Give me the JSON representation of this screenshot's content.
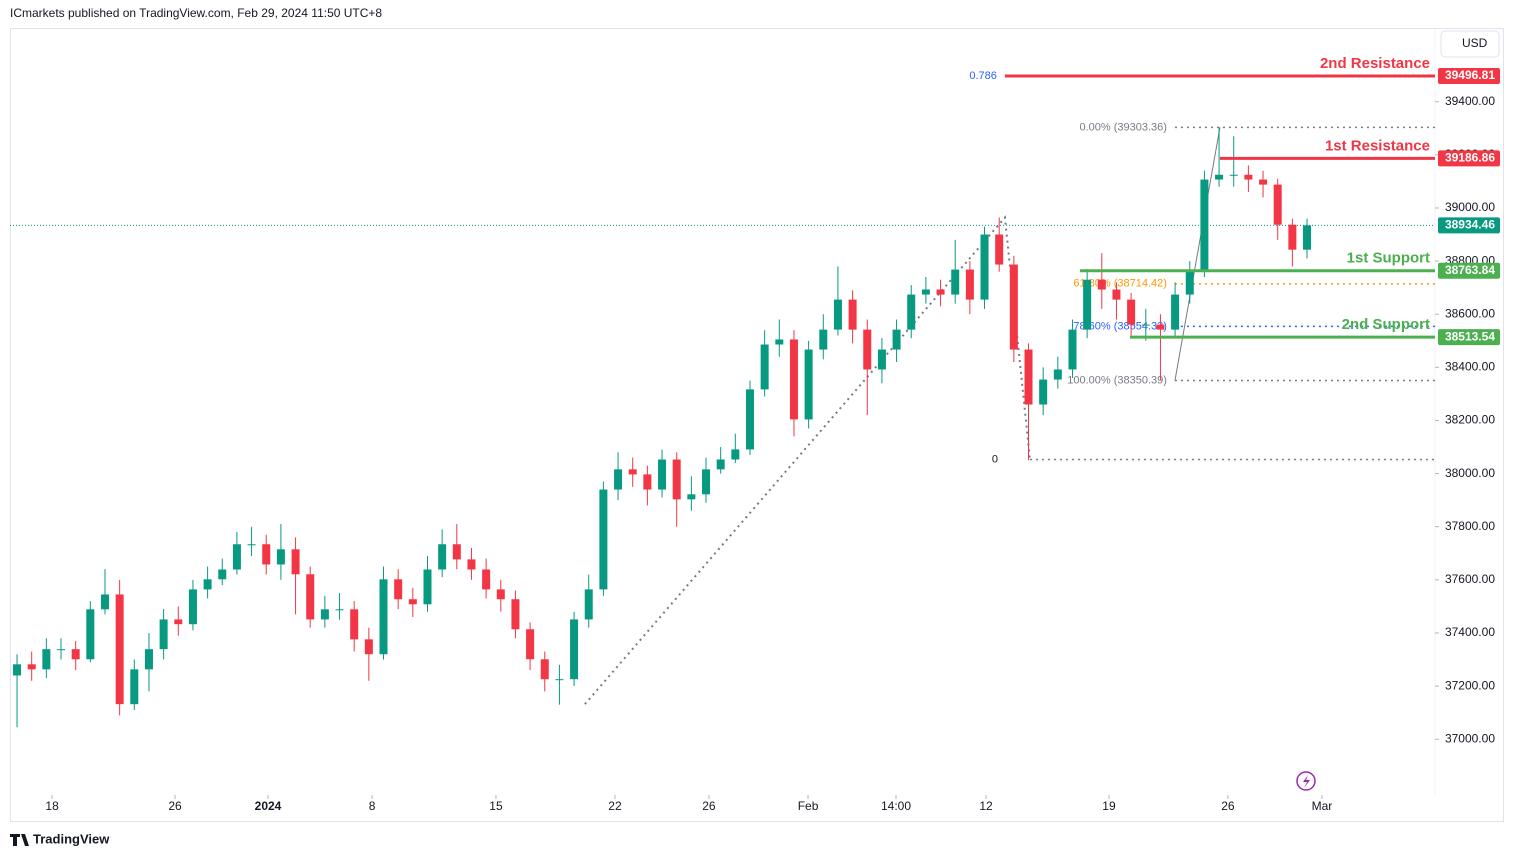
{
  "header": {
    "text": "ICmarkets published on TradingView.com, Feb 29, 2024 11:50 UTC+8"
  },
  "footer": {
    "brand": "TradingView"
  },
  "currency": "USD",
  "chart_data": {
    "type": "candlestick",
    "open": [
      37240,
      37282,
      37263,
      37339,
      37339,
      37301,
      37489,
      37545,
      37132,
      37263,
      37339,
      37451,
      37433,
      37564,
      37602,
      37639,
      37734,
      37734,
      37658,
      37715,
      37621,
      37451,
      37489,
      37489,
      37376,
      37320,
      37602,
      37527,
      37508,
      37639,
      37734,
      37677,
      37639,
      37564,
      37527,
      37414,
      37301,
      37226,
      37226,
      37451,
      37564,
      37940,
      38016,
      37997,
      37940,
      38053,
      37903,
      37922,
      38016,
      38053,
      38091,
      38317,
      38486,
      38505,
      38204,
      38467,
      38542,
      38655,
      38542,
      38392,
      38467,
      38542,
      38674,
      38693,
      38674,
      38768,
      38655,
      38900,
      38787,
      38467,
      38260,
      38354,
      38392,
      38542,
      38730,
      38693,
      38655,
      38561,
      38561,
      38542,
      38674,
      38768,
      39107,
      39125,
      39125,
      39107,
      39088,
      38937,
      38843
    ],
    "high": [
      37320,
      37330,
      37380,
      37380,
      37370,
      37520,
      37640,
      37600,
      37300,
      37400,
      37490,
      37500,
      37600,
      37650,
      37680,
      37780,
      37800,
      37770,
      37810,
      37760,
      37650,
      37540,
      37550,
      37520,
      37420,
      37650,
      37640,
      37570,
      37690,
      37790,
      37810,
      37720,
      37680,
      37600,
      37560,
      37440,
      37330,
      37280,
      37480,
      37620,
      37970,
      38080,
      38060,
      38030,
      38090,
      38080,
      37990,
      38060,
      38100,
      38150,
      38350,
      38540,
      38580,
      38540,
      38500,
      38600,
      38780,
      38690,
      38580,
      38510,
      38580,
      38710,
      38740,
      38730,
      38880,
      38800,
      38930,
      38964,
      38820,
      38490,
      38400,
      38440,
      38580,
      38770,
      38830,
      38720,
      38680,
      38620,
      38600,
      38720,
      38800,
      39140,
      39303.36,
      39270,
      39160,
      39140,
      39110,
      38960,
      38960
    ],
    "low": [
      37045,
      37220,
      37230,
      37300,
      37260,
      37290,
      37470,
      37090,
      37110,
      37180,
      37300,
      37390,
      37410,
      37530,
      37580,
      37620,
      37690,
      37620,
      37600,
      37470,
      37420,
      37420,
      37450,
      37330,
      37220,
      37300,
      37490,
      37460,
      37480,
      37610,
      37640,
      37600,
      37530,
      37480,
      37380,
      37260,
      37180,
      37130,
      37200,
      37420,
      37540,
      37900,
      37950,
      37880,
      37910,
      37800,
      37860,
      37890,
      38000,
      38040,
      38070,
      38290,
      38440,
      38140,
      38170,
      38430,
      38520,
      38490,
      38220,
      38340,
      38420,
      38510,
      38640,
      38630,
      38640,
      38600,
      38620,
      38760,
      38420,
      38050,
      38220,
      38320,
      38360,
      38510,
      38620,
      38580,
      38520,
      38500,
      38350.39,
      38510,
      38640,
      38740,
      39080,
      39080,
      39060,
      39040,
      38880,
      38780,
      38810
    ],
    "close": [
      37282,
      37263,
      37339,
      37339,
      37301,
      37489,
      37545,
      37132,
      37263,
      37339,
      37451,
      37433,
      37564,
      37602,
      37639,
      37734,
      37734,
      37658,
      37715,
      37621,
      37451,
      37489,
      37489,
      37376,
      37320,
      37602,
      37527,
      37508,
      37639,
      37734,
      37677,
      37639,
      37564,
      37527,
      37414,
      37301,
      37226,
      37226,
      37451,
      37564,
      37940,
      38016,
      37997,
      37940,
      38053,
      37903,
      37922,
      38016,
      38053,
      38091,
      38317,
      38486,
      38505,
      38204,
      38467,
      38542,
      38655,
      38542,
      38392,
      38467,
      38542,
      38674,
      38693,
      38674,
      38768,
      38655,
      38900,
      38787,
      38467,
      38260,
      38354,
      38392,
      38542,
      38730,
      38693,
      38655,
      38561,
      38561,
      38542,
      38674,
      38768,
      39107,
      39125,
      39125,
      39107,
      39088,
      38937,
      38843,
      38934.46
    ],
    "colors": {
      "up": "#089981",
      "down": "#f23645"
    },
    "xlim": [
      -0.48,
      96.73
    ],
    "xticks": [
      {
        "value": 2.39,
        "label": "18"
      },
      {
        "value": 10.78,
        "label": "26"
      },
      {
        "value": 17.12,
        "label": "2024"
      },
      {
        "value": 24.22,
        "label": "8"
      },
      {
        "value": 32.67,
        "label": "15"
      },
      {
        "value": 40.79,
        "label": "22"
      },
      {
        "value": 47.2,
        "label": "26"
      },
      {
        "value": 53.96,
        "label": "Feb"
      },
      {
        "value": 59.96,
        "label": "14:00"
      },
      {
        "value": 66.1,
        "label": "12"
      },
      {
        "value": 74.49,
        "label": "19"
      },
      {
        "value": 82.6,
        "label": "26"
      },
      {
        "value": 89.02,
        "label": "Mar"
      }
    ],
    "ylim": [
      36790,
      39670
    ],
    "yticks": [
      {
        "value": 37000,
        "label": "37000.00"
      },
      {
        "value": 37200,
        "label": "37200.00"
      },
      {
        "value": 37400,
        "label": "37400.00"
      },
      {
        "value": 37600,
        "label": "37600.00"
      },
      {
        "value": 37800,
        "label": "37800.00"
      },
      {
        "value": 38000,
        "label": "38000.00"
      },
      {
        "value": 38200,
        "label": "38200.00"
      },
      {
        "value": 38400,
        "label": "38400.00"
      },
      {
        "value": 38600,
        "label": "38600.00"
      },
      {
        "value": 38800,
        "label": "38800.00"
      },
      {
        "value": 39000,
        "label": "39000.00"
      },
      {
        "value": 39200,
        "label": "39200.00"
      },
      {
        "value": 39400,
        "label": "39400.00"
      }
    ],
    "last_price_color": "#089981",
    "levels": [
      {
        "name": "2nd Resistance",
        "value": 39496.81,
        "color": "#f23645",
        "from": 67.39,
        "ratio": "0.786"
      },
      {
        "name": "1st Resistance",
        "value": 39186.86,
        "color": "#f23645",
        "from": 82.06
      },
      {
        "name": "1st Support",
        "value": 38763.84,
        "color": "#4caf50",
        "from": 72.51
      },
      {
        "name": "2nd Support",
        "value": 38513.54,
        "color": "#4caf50",
        "from": 75.92
      }
    ],
    "fib": {
      "from": 78.99,
      "levels": [
        {
          "label": "0.00% (39303.36)",
          "value": 39303.36,
          "color": "#787b86"
        },
        {
          "label": "61.80% (38714.42)",
          "value": 38714.42,
          "color": "#ff9800"
        },
        {
          "label": "78.60% (38554.33)",
          "value": 38554.33,
          "color": "#2962ff"
        },
        {
          "label": "100.00% (38350.39)",
          "value": 38350.39,
          "color": "#787b86"
        }
      ]
    },
    "zero_level": {
      "label": "0",
      "value": 38053,
      "from": 69.1
    },
    "trend_lines": [
      {
        "x": [
          38.74,
          67.39,
          69.1
        ],
        "y": [
          37132,
          38964,
          38053
        ]
      },
      {
        "x": [
          78.99,
          82.06
        ],
        "y": [
          38350.39,
          39303.36
        ]
      }
    ]
  }
}
